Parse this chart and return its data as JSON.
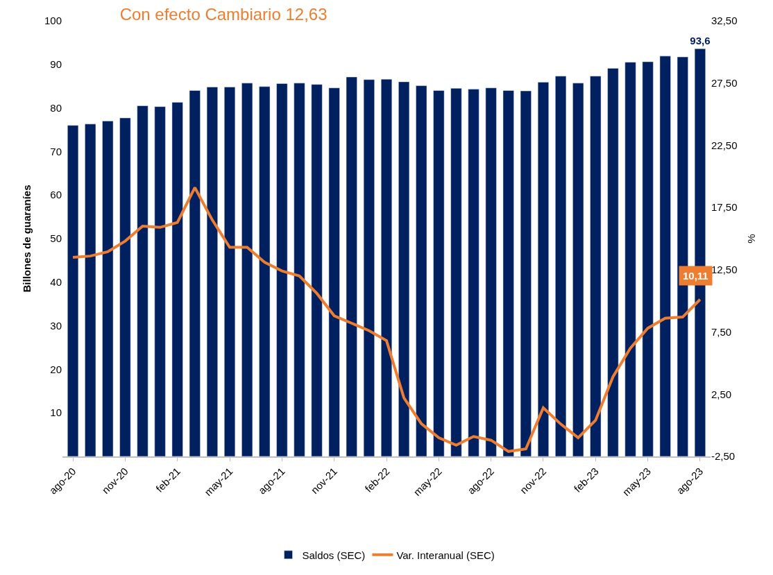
{
  "chart_data": {
    "type": "bar",
    "title": "Con efecto Cambiario 12,63",
    "ylabel": "Billones de guaraníes",
    "y2label": "%",
    "categories": [
      "ago-20",
      null,
      null,
      "nov-20",
      null,
      null,
      "feb-21",
      null,
      null,
      "may-21",
      null,
      null,
      "ago-21",
      null,
      null,
      "nov-21",
      null,
      null,
      "feb-22",
      null,
      null,
      "may-22",
      null,
      null,
      "ago-22",
      null,
      null,
      "nov-22",
      null,
      null,
      "feb-23",
      null,
      null,
      "may-23",
      null,
      null,
      "ago-23"
    ],
    "series": [
      {
        "name": "Saldos (SEC)",
        "color": "#002060",
        "values": [
          76.0,
          76.3,
          77.0,
          77.7,
          80.5,
          80.3,
          81.3,
          84.0,
          84.8,
          84.8,
          85.7,
          84.9,
          85.6,
          85.7,
          85.4,
          84.6,
          87.1,
          86.5,
          86.6,
          86.0,
          85.1,
          84.0,
          84.5,
          84.3,
          84.6,
          84.0,
          83.9,
          85.9,
          87.3,
          85.7,
          87.3,
          89.1,
          90.5,
          90.6,
          91.9,
          91.7,
          93.6
        ],
        "value_labels": [
          null,
          null,
          null,
          null,
          null,
          null,
          null,
          null,
          null,
          null,
          null,
          null,
          null,
          null,
          null,
          null,
          null,
          null,
          null,
          null,
          null,
          null,
          null,
          null,
          null,
          null,
          null,
          null,
          null,
          null,
          null,
          null,
          null,
          null,
          null,
          null,
          "93,6"
        ]
      },
      {
        "name": "Var. Interanual (SEC)",
        "type": "line",
        "axis": "y2",
        "color": "#ED7D31",
        "values": [
          13.5,
          13.6,
          13.95,
          14.8,
          16.0,
          15.9,
          16.3,
          19.1,
          16.5,
          14.3,
          14.3,
          13.1,
          12.4,
          12.0,
          10.6,
          8.8,
          8.2,
          7.6,
          6.8,
          2.2,
          0.13,
          -1.0,
          -1.6,
          -0.9,
          -1.2,
          -2.1,
          -1.9,
          1.4,
          0.1,
          -1.0,
          0.4,
          3.9,
          6.2,
          7.8,
          8.6,
          8.7,
          10.11
        ],
        "value_labels": [
          null,
          null,
          null,
          null,
          null,
          null,
          null,
          null,
          null,
          null,
          null,
          null,
          null,
          null,
          null,
          null,
          null,
          null,
          null,
          null,
          null,
          null,
          null,
          null,
          null,
          null,
          null,
          null,
          null,
          null,
          null,
          null,
          null,
          null,
          null,
          null,
          "10,11"
        ]
      }
    ],
    "ylim": [
      0,
      100
    ],
    "yticks": [
      10,
      20,
      30,
      40,
      50,
      60,
      70,
      80,
      90,
      100
    ],
    "y2lim": [
      -2.5,
      32.5
    ],
    "y2ticks": [
      {
        "value": -2.5,
        "label": "-2,50"
      },
      {
        "value": 2.5,
        "label": "2,50"
      },
      {
        "value": 7.5,
        "label": "7,50"
      },
      {
        "value": 12.5,
        "label": "12,50"
      },
      {
        "value": 17.5,
        "label": "17,50"
      },
      {
        "value": 22.5,
        "label": "22,50"
      },
      {
        "value": 27.5,
        "label": "27,50"
      },
      {
        "value": 32.5,
        "label": "32,50"
      }
    ],
    "legend": "bottom",
    "line_style": "solid",
    "marker": "none"
  }
}
